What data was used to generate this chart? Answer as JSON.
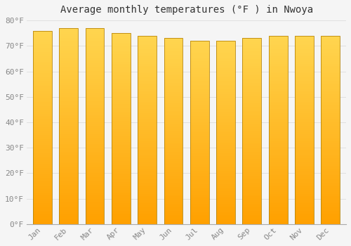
{
  "title": "Average monthly temperatures (°F ) in Nwoya",
  "months": [
    "Jan",
    "Feb",
    "Mar",
    "Apr",
    "May",
    "Jun",
    "Jul",
    "Aug",
    "Sep",
    "Oct",
    "Nov",
    "Dec"
  ],
  "values": [
    76,
    77,
    77,
    75,
    74,
    73,
    72,
    72,
    73,
    74,
    74,
    74
  ],
  "ylim": [
    0,
    80
  ],
  "yticks": [
    0,
    10,
    20,
    30,
    40,
    50,
    60,
    70,
    80
  ],
  "ytick_labels": [
    "0°F",
    "10°F",
    "20°F",
    "30°F",
    "40°F",
    "50°F",
    "60°F",
    "70°F",
    "80°F"
  ],
  "bar_color_light": "#FFD54F",
  "bar_color_dark": "#FFA000",
  "bar_edge_color": "#B8860B",
  "background_color": "#F5F5F5",
  "grid_color": "#DDDDDD",
  "title_fontsize": 10,
  "tick_fontsize": 8,
  "title_color": "#333333",
  "tick_color": "#888888"
}
